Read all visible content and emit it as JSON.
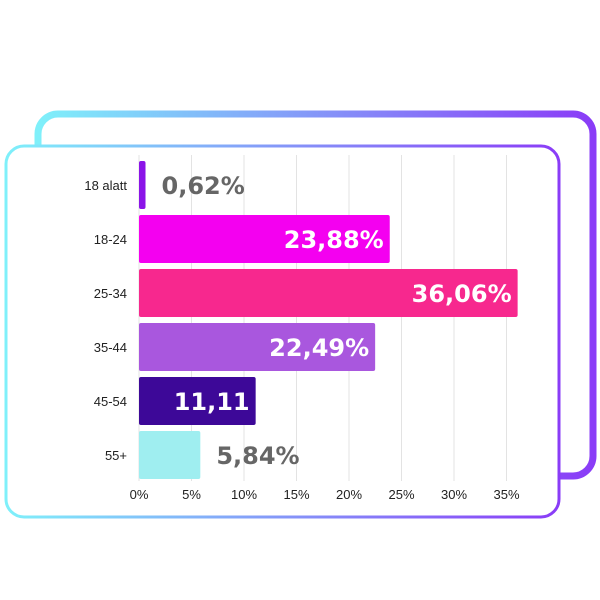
{
  "chart_data": {
    "type": "bar",
    "orientation": "horizontal",
    "categories": [
      "18 alatt",
      "18-24",
      "25-34",
      "35-44",
      "45-54",
      "55+"
    ],
    "values": [
      0.62,
      23.88,
      36.06,
      22.49,
      11.11,
      5.84
    ],
    "value_labels": [
      "0,62%",
      "23,88%",
      "36,06%",
      "22,49%",
      "11,11",
      "5,84%"
    ],
    "bar_colors": [
      "#8B14E8",
      "#F400F0",
      "#F7288E",
      "#A957DE",
      "#3D0898",
      "#9FEEF0"
    ],
    "label_colors": [
      "#666666",
      "#ffffff",
      "#ffffff",
      "#ffffff",
      "#ffffff",
      "#666666"
    ],
    "label_inside": [
      false,
      true,
      true,
      true,
      true,
      false
    ],
    "x_ticks": [
      "0%",
      "5%",
      "10%",
      "15%",
      "20%",
      "25%",
      "30%",
      "35%"
    ],
    "xlim": [
      0,
      35
    ],
    "grid": true,
    "title": "",
    "xlabel": "",
    "ylabel": ""
  },
  "frame": {
    "gradient_start": "#7FF0FA",
    "gradient_end": "#8A3CF7"
  }
}
